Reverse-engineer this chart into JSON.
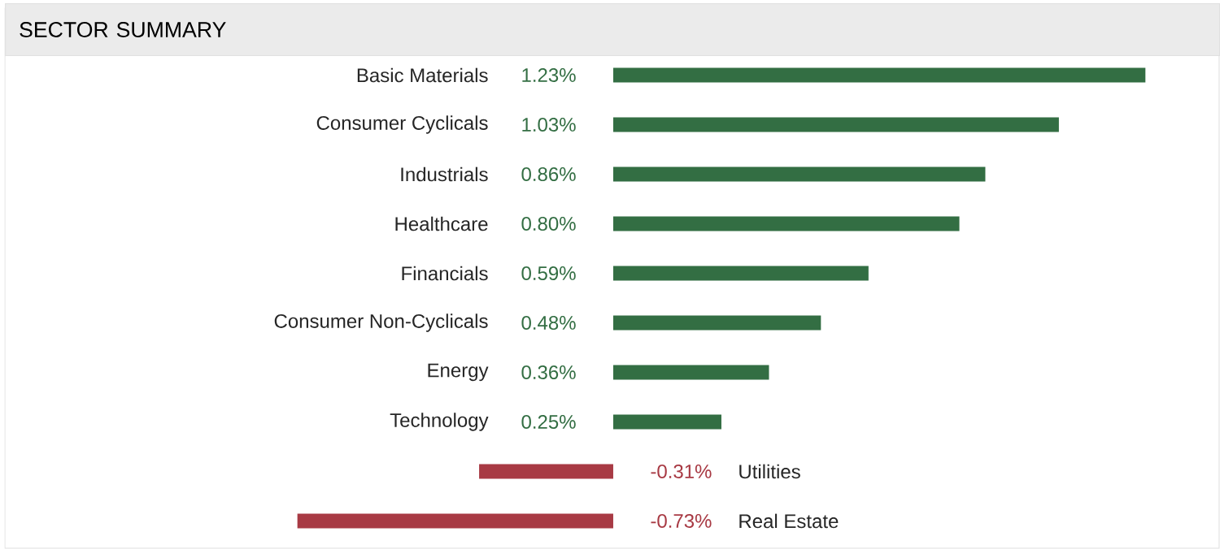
{
  "chart_data": {
    "type": "bar",
    "orientation": "horizontal",
    "title": "SECTOR SUMMARY",
    "categories": [
      "Basic Materials",
      "Consumer Cyclicals",
      "Industrials",
      "Healthcare",
      "Financials",
      "Consumer Non-Cyclicals",
      "Energy",
      "Technology",
      "Utilities",
      "Real Estate"
    ],
    "values": [
      1.23,
      1.03,
      0.86,
      0.8,
      0.59,
      0.48,
      0.36,
      0.25,
      -0.31,
      -0.73
    ],
    "value_labels": [
      "1.23%",
      "1.03%",
      "0.86%",
      "0.80%",
      "0.59%",
      "0.48%",
      "0.36%",
      "0.25%",
      "-0.31%",
      "-0.73%"
    ],
    "colors": [
      "#336e43",
      "#336e43",
      "#336e43",
      "#336e43",
      "#336e43",
      "#336e43",
      "#336e43",
      "#336e43",
      "#a83a44",
      "#a83a44"
    ]
  }
}
